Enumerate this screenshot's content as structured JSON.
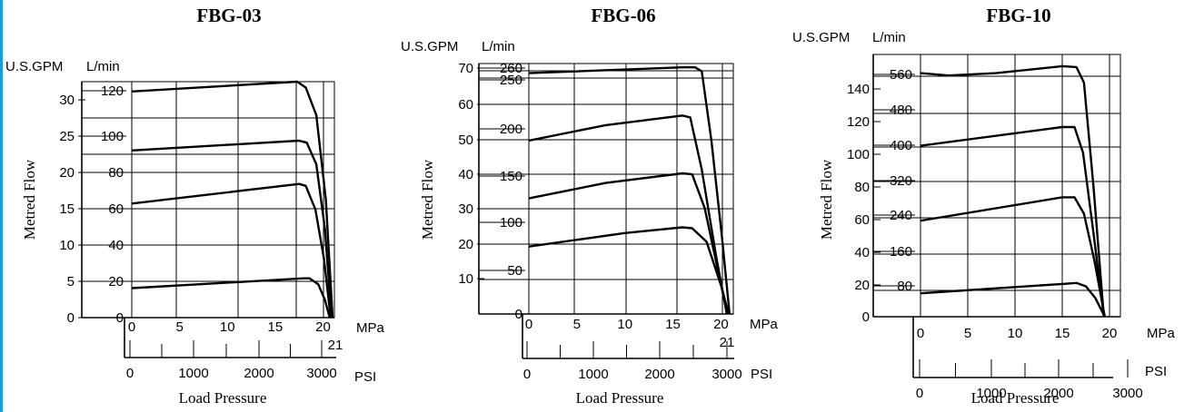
{
  "chart_data": [
    {
      "type": "line",
      "title": "FBG-03",
      "ylabel": "Metred Flow",
      "xlabel": "Load Pressure",
      "x_unit_primary": "MPa",
      "x_unit_secondary": "PSI",
      "y_unit_primary": "L/min",
      "y_unit_secondary": "U.S.GPM",
      "xlim": [
        0,
        21
      ],
      "ylim": [
        0,
        120
      ],
      "x_ticks": [
        "0",
        "5",
        "10",
        "15",
        "20"
      ],
      "x_end_label": "21",
      "psi_ticks": [
        "0",
        "1000",
        "2000",
        "3000"
      ],
      "y_ticks_lmin": [
        "0",
        "20",
        "40",
        "60",
        "80",
        "100",
        "120"
      ],
      "y_ticks_gpm": [
        "0",
        "5",
        "10",
        "15",
        "20",
        "25",
        "30"
      ],
      "grid": true,
      "series": [
        {
          "points": [
            [
              0,
              15
            ],
            [
              18,
              20
            ],
            [
              18.6,
              20
            ],
            [
              19.5,
              17
            ],
            [
              20.2,
              9
            ],
            [
              20.7,
              0
            ]
          ]
        },
        {
          "points": [
            [
              0,
              58
            ],
            [
              17.5,
              68
            ],
            [
              18.2,
              67
            ],
            [
              19.2,
              55
            ],
            [
              20.1,
              30
            ],
            [
              20.8,
              0
            ]
          ]
        },
        {
          "points": [
            [
              0,
              85
            ],
            [
              17.5,
              90
            ],
            [
              18.3,
              89
            ],
            [
              19.3,
              78
            ],
            [
              20.2,
              45
            ],
            [
              20.9,
              0
            ]
          ]
        },
        {
          "points": [
            [
              0,
              115
            ],
            [
              17.3,
              120
            ],
            [
              18.2,
              117
            ],
            [
              19.3,
              103
            ],
            [
              20.3,
              60
            ],
            [
              21,
              0
            ]
          ]
        }
      ]
    },
    {
      "type": "line",
      "title": "FBG-06",
      "ylabel": "Metred Flow",
      "xlabel": "Load Pressure",
      "x_unit_primary": "MPa",
      "x_unit_secondary": "PSI",
      "y_unit_primary": "L/min",
      "y_unit_secondary": "U.S.GPM",
      "xlim": [
        0,
        21
      ],
      "ylim": [
        0,
        260
      ],
      "x_ticks": [
        "0",
        "5",
        "10",
        "15",
        "20"
      ],
      "x_end_label": "21",
      "psi_ticks": [
        "0",
        "1000",
        "2000",
        "3000"
      ],
      "y_ticks_lmin": [
        "0",
        "50",
        "100",
        "150",
        "200",
        "250",
        "260"
      ],
      "y_ticks_gpm": [
        "10",
        "20",
        "30",
        "40",
        "50",
        "60",
        "70"
      ],
      "grid": true,
      "series": [
        {
          "points": [
            [
              0,
              70
            ],
            [
              10,
              84
            ],
            [
              16,
              90
            ],
            [
              17,
              89
            ],
            [
              18.5,
              75
            ],
            [
              20,
              30
            ],
            [
              20.8,
              0
            ]
          ]
        },
        {
          "points": [
            [
              0,
              120
            ],
            [
              8,
              136
            ],
            [
              16,
              146
            ],
            [
              17,
              145
            ],
            [
              18.3,
              110
            ],
            [
              19.8,
              40
            ],
            [
              20.7,
              0
            ]
          ]
        },
        {
          "points": [
            [
              0,
              180
            ],
            [
              8,
              196
            ],
            [
              16,
              206
            ],
            [
              16.8,
              204
            ],
            [
              18,
              150
            ],
            [
              19.5,
              60
            ],
            [
              20.6,
              0
            ]
          ]
        },
        {
          "points": [
            [
              0,
              250
            ],
            [
              16,
              256
            ],
            [
              17.3,
              256
            ],
            [
              18,
              252
            ],
            [
              19,
              180
            ],
            [
              20.1,
              80
            ],
            [
              20.9,
              0
            ]
          ]
        }
      ]
    },
    {
      "type": "line",
      "title": "FBG-10",
      "ylabel": "Metred Flow",
      "xlabel": "Load Pressure",
      "x_unit_primary": "MPa",
      "x_unit_secondary": "PSI",
      "y_unit_primary": "L/min",
      "y_unit_secondary": "U.S.GPM",
      "xlim": [
        0,
        20
      ],
      "ylim": [
        0,
        560
      ],
      "x_ticks": [
        "0",
        "5",
        "10",
        "15",
        "20"
      ],
      "psi_ticks": [
        "0",
        "1000",
        "2000",
        "3000"
      ],
      "y_ticks_lmin": [
        "80",
        "160",
        "240",
        "320",
        "400",
        "480",
        "560"
      ],
      "y_ticks_gpm": [
        "0",
        "20",
        "40",
        "60",
        "80",
        "100",
        "120",
        "140"
      ],
      "grid": true,
      "series": [
        {
          "points": [
            [
              0,
              50
            ],
            [
              15,
              70
            ],
            [
              16.5,
              72
            ],
            [
              17.5,
              65
            ],
            [
              18.5,
              40
            ],
            [
              19.5,
              0
            ]
          ]
        },
        {
          "points": [
            [
              0,
              205
            ],
            [
              15,
              255
            ],
            [
              16.3,
              255
            ],
            [
              17.3,
              220
            ],
            [
              18.4,
              120
            ],
            [
              19.5,
              0
            ]
          ]
        },
        {
          "points": [
            [
              0,
              365
            ],
            [
              15,
              405
            ],
            [
              16.3,
              405
            ],
            [
              17.2,
              350
            ],
            [
              18.3,
              180
            ],
            [
              19.4,
              0
            ]
          ]
        },
        {
          "points": [
            [
              0,
              520
            ],
            [
              3,
              515
            ],
            [
              8,
              520
            ],
            [
              15,
              535
            ],
            [
              16.5,
              533
            ],
            [
              17.3,
              500
            ],
            [
              18.3,
              280
            ],
            [
              19.4,
              0
            ]
          ]
        }
      ]
    }
  ]
}
